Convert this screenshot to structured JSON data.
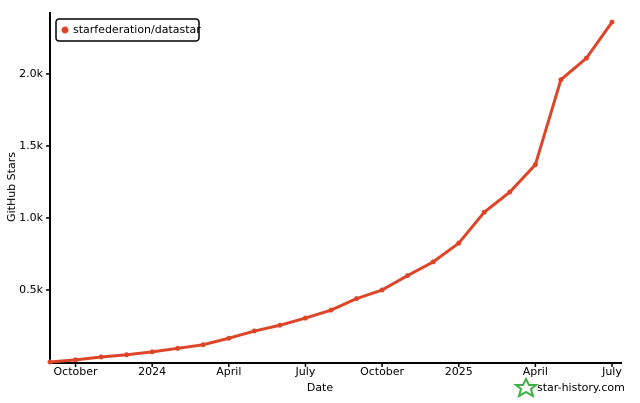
{
  "chart_data": {
    "type": "line",
    "xlabel": "Date",
    "ylabel": "GitHub Stars",
    "watermark": "star-history.com",
    "x": [
      "2023-09",
      "2023-10",
      "2023-11",
      "2023-12",
      "2024-01",
      "2024-02",
      "2024-03",
      "2024-04",
      "2024-05",
      "2024-06",
      "2024-07",
      "2024-08",
      "2024-09",
      "2024-10",
      "2024-11",
      "2024-12",
      "2025-01",
      "2025-02",
      "2025-03",
      "2025-04",
      "2025-05",
      "2025-06",
      "2025-07"
    ],
    "series": [
      {
        "name": "starfederation/datastar",
        "color": "#dd4528",
        "values": [
          0,
          15,
          35,
          50,
          70,
          95,
          120,
          165,
          215,
          255,
          305,
          360,
          440,
          500,
          600,
          695,
          825,
          1040,
          1180,
          1370,
          1960,
          2110,
          2360
        ]
      }
    ],
    "xlim": [
      "2023-09",
      "2025-07"
    ],
    "xticks": [
      {
        "value": "2023-10",
        "label": "October"
      },
      {
        "value": "2024-01",
        "label": "2024"
      },
      {
        "value": "2024-04",
        "label": "April"
      },
      {
        "value": "2024-07",
        "label": "July"
      },
      {
        "value": "2024-10",
        "label": "October"
      },
      {
        "value": "2025-01",
        "label": "2025"
      },
      {
        "value": "2025-04",
        "label": "April"
      },
      {
        "value": "2025-07",
        "label": "July"
      }
    ],
    "ylim": [
      0,
      2430
    ],
    "yticks": [
      {
        "value": 500,
        "label": "0.5k"
      },
      {
        "value": 1000,
        "label": "1.0k"
      },
      {
        "value": 1500,
        "label": "1.5k"
      },
      {
        "value": 2000,
        "label": "2.0k"
      }
    ],
    "legend": "top-left"
  }
}
